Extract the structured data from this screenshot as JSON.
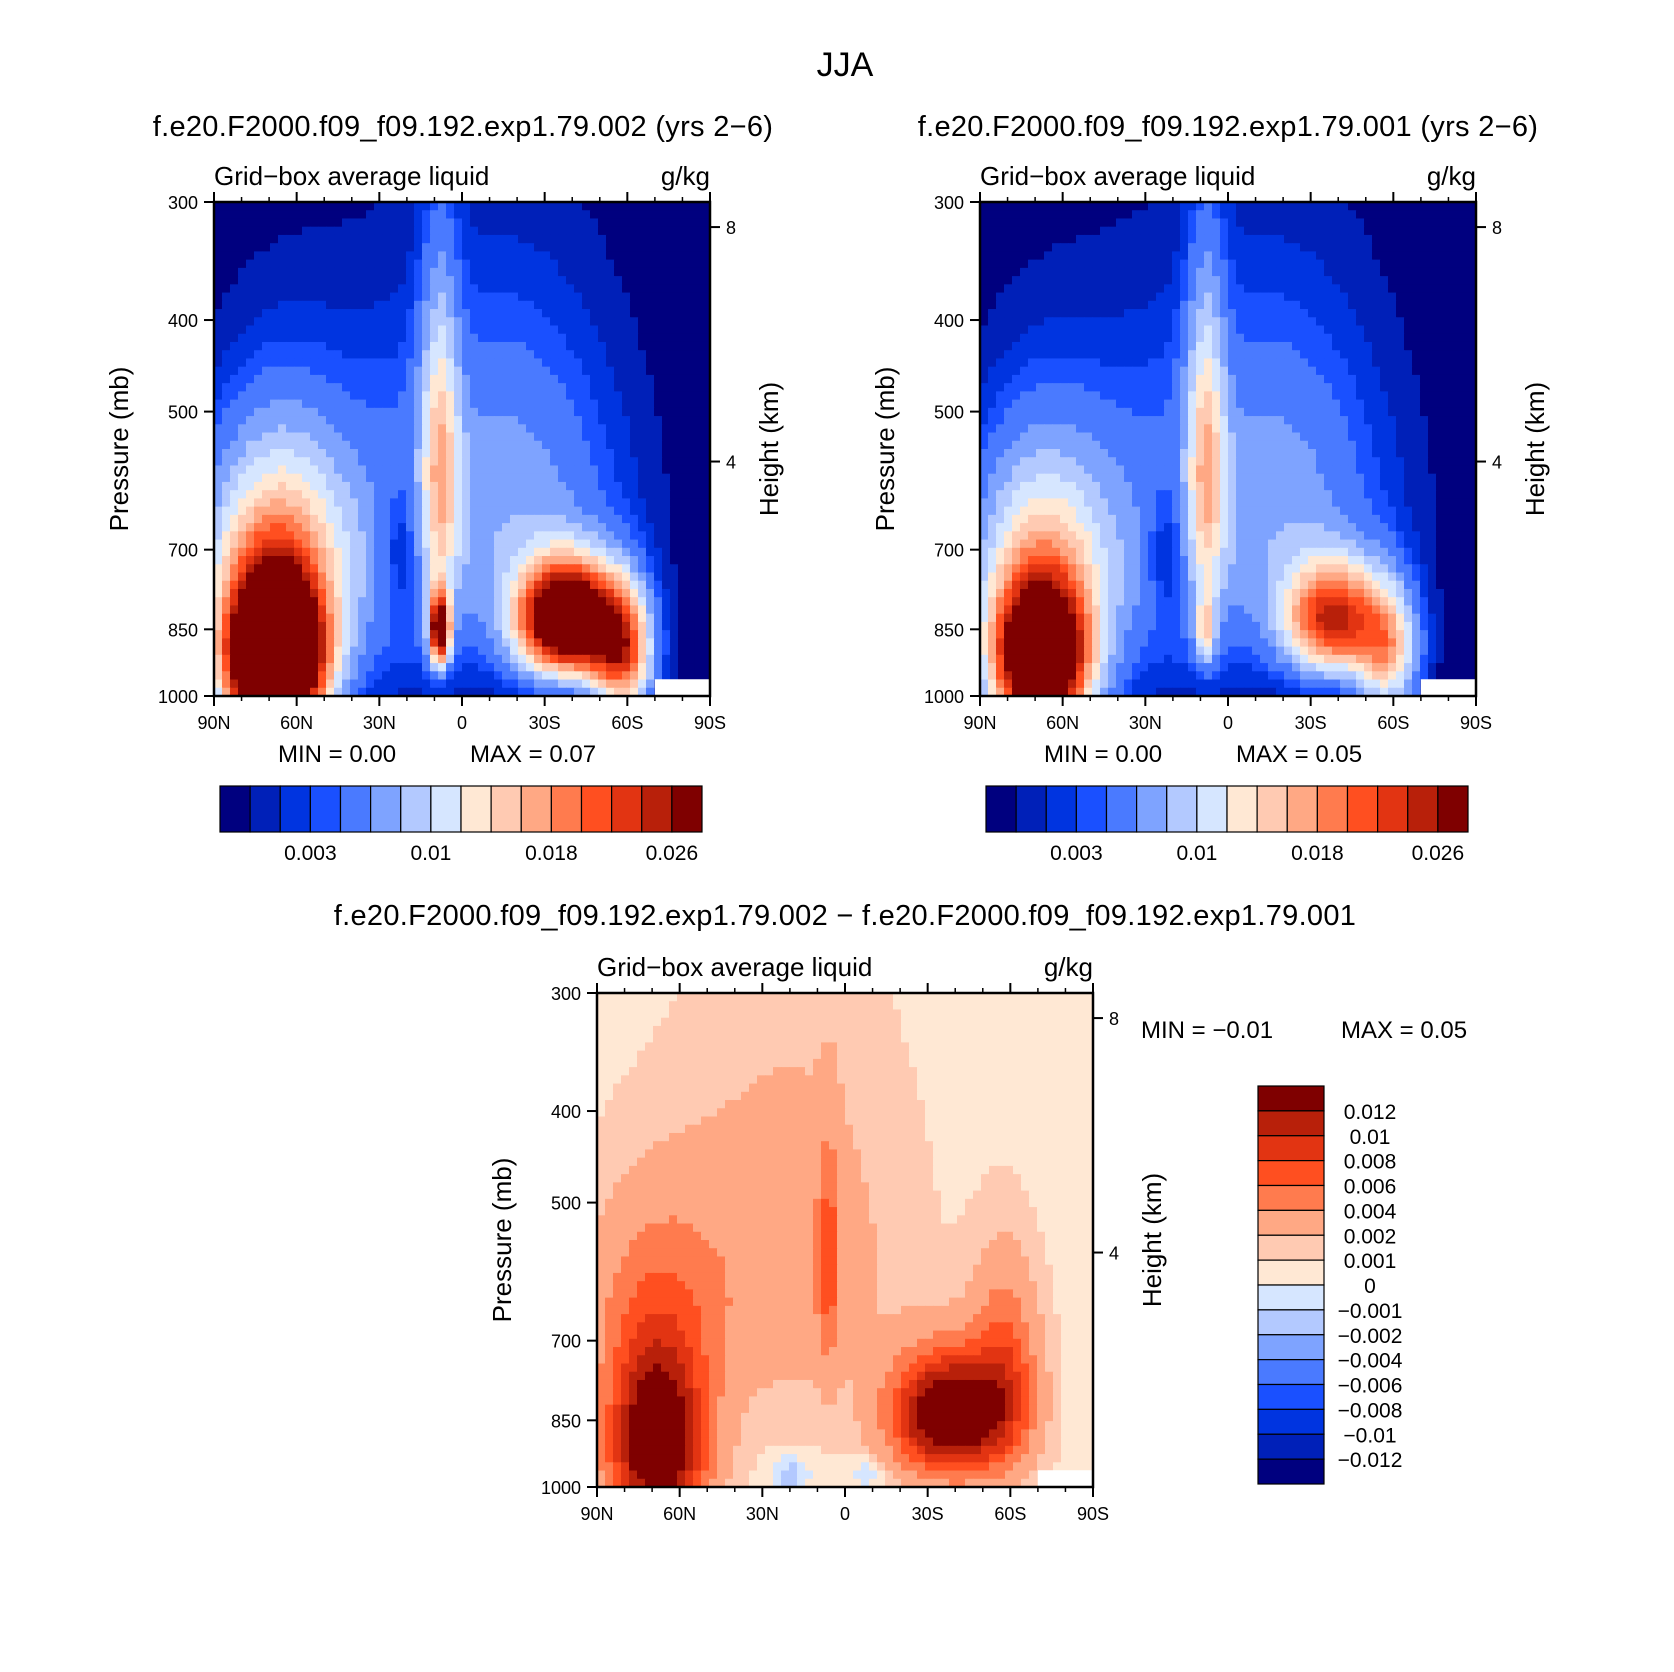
{
  "title": "JJA",
  "chart_data": [
    {
      "type": "heatmap",
      "id": "panel1",
      "title": "f.e20.F2000.f09_f09.192.exp1.79.002 (yrs 2−6)",
      "left_label": "Grid−box average liquid",
      "right_label": "g/kg",
      "xlabel": "",
      "ylabel": "Pressure (mb)",
      "y2label": "Height (km)",
      "x_ticks": [
        "90N",
        "60N",
        "30N",
        "0",
        "30S",
        "60S",
        "90S"
      ],
      "xlim": [
        90,
        -90
      ],
      "y_ticks": [
        300,
        400,
        500,
        700,
        850,
        1000
      ],
      "ylim": [
        300,
        1000
      ],
      "y2_ticks": [
        8,
        4
      ],
      "min_text": "MIN =     0.00",
      "max_text": "MAX =     0.07",
      "levels": [
        0.001,
        0.002,
        0.003,
        0.004,
        0.006,
        0.008,
        0.01,
        0.012,
        0.014,
        0.016,
        0.018,
        0.02,
        0.022,
        0.024,
        0.026
      ],
      "colorbar_labels": [
        "0.003",
        "0.01",
        "0.018",
        "0.026"
      ],
      "colors": [
        "#00007f",
        "#0020b8",
        "#0034e0",
        "#1a50ff",
        "#4a7aff",
        "#7ea3ff",
        "#b3c9ff",
        "#d6e6ff",
        "#ffe8d4",
        "#ffcab2",
        "#ffa884",
        "#ff7b4e",
        "#ff4f20",
        "#e23412",
        "#b8200a",
        "#7f0000"
      ]
    },
    {
      "type": "heatmap",
      "id": "panel2",
      "title": "f.e20.F2000.f09_f09.192.exp1.79.001 (yrs 2−6)",
      "left_label": "Grid−box average liquid",
      "right_label": "g/kg",
      "xlabel": "",
      "ylabel": "Pressure (mb)",
      "y2label": "Height (km)",
      "x_ticks": [
        "90N",
        "60N",
        "30N",
        "0",
        "30S",
        "60S",
        "90S"
      ],
      "xlim": [
        90,
        -90
      ],
      "y_ticks": [
        300,
        400,
        500,
        700,
        850,
        1000
      ],
      "ylim": [
        300,
        1000
      ],
      "y2_ticks": [
        8,
        4
      ],
      "min_text": "MIN =     0.00",
      "max_text": "MAX =     0.05",
      "levels": [
        0.001,
        0.002,
        0.003,
        0.004,
        0.006,
        0.008,
        0.01,
        0.012,
        0.014,
        0.016,
        0.018,
        0.02,
        0.022,
        0.024,
        0.026
      ],
      "colorbar_labels": [
        "0.003",
        "0.01",
        "0.018",
        "0.026"
      ],
      "colors": [
        "#00007f",
        "#0020b8",
        "#0034e0",
        "#1a50ff",
        "#4a7aff",
        "#7ea3ff",
        "#b3c9ff",
        "#d6e6ff",
        "#ffe8d4",
        "#ffcab2",
        "#ffa884",
        "#ff7b4e",
        "#ff4f20",
        "#e23412",
        "#b8200a",
        "#7f0000"
      ]
    },
    {
      "type": "heatmap",
      "id": "panel3",
      "title": "f.e20.F2000.f09_f09.192.exp1.79.002 − f.e20.F2000.f09_f09.192.exp1.79.001",
      "left_label": "Grid−box average liquid",
      "right_label": "g/kg",
      "xlabel": "",
      "ylabel": "Pressure (mb)",
      "y2label": "Height (km)",
      "x_ticks": [
        "90N",
        "60N",
        "30N",
        "0",
        "30S",
        "60S",
        "90S"
      ],
      "xlim": [
        90,
        -90
      ],
      "y_ticks": [
        300,
        400,
        500,
        700,
        850,
        1000
      ],
      "ylim": [
        300,
        1000
      ],
      "y2_ticks": [
        8,
        4
      ],
      "min_text": "MIN =    −0.01",
      "max_text": "MAX =     0.05",
      "levels": [
        0.012,
        0.01,
        0.008,
        0.006,
        0.004,
        0.002,
        0.001,
        0,
        -0.001,
        -0.002,
        -0.004,
        -0.006,
        -0.008,
        -0.01,
        -0.012
      ],
      "colorbar_labels": [
        "0.012",
        "0.01",
        "0.008",
        "0.006",
        "0.004",
        "0.002",
        "0.001",
        "0",
        "−0.001",
        "−0.002",
        "−0.004",
        "−0.006",
        "−0.008",
        "−0.01",
        "−0.012"
      ],
      "colors": [
        "#7f0000",
        "#b8200a",
        "#e23412",
        "#ff4f20",
        "#ff7b4e",
        "#ffa884",
        "#ffcab2",
        "#ffe8d4",
        "#d6e6ff",
        "#b3c9ff",
        "#7ea3ff",
        "#4a7aff",
        "#1a50ff",
        "#0034e0",
        "#0020b8",
        "#00007f"
      ]
    }
  ]
}
